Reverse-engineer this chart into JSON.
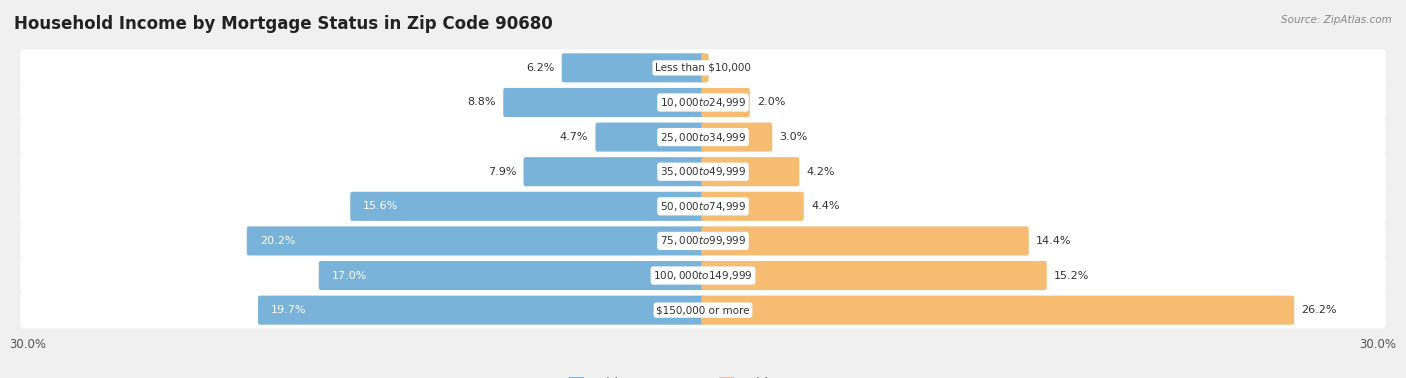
{
  "title": "Household Income by Mortgage Status in Zip Code 90680",
  "source": "Source: ZipAtlas.com",
  "categories": [
    "Less than $10,000",
    "$10,000 to $24,999",
    "$25,000 to $34,999",
    "$35,000 to $49,999",
    "$50,000 to $74,999",
    "$75,000 to $99,999",
    "$100,000 to $149,999",
    "$150,000 or more"
  ],
  "without_mortgage": [
    6.2,
    8.8,
    4.7,
    7.9,
    15.6,
    20.2,
    17.0,
    19.7
  ],
  "with_mortgage": [
    0.17,
    2.0,
    3.0,
    4.2,
    4.4,
    14.4,
    15.2,
    26.2
  ],
  "without_mortgage_color": "#7ab3d9",
  "with_mortgage_color": "#f5bc72",
  "xlim": 30.0,
  "background_color": "#f0f0f0",
  "row_bg_color": "#e8e8ec",
  "title_fontsize": 12,
  "label_fontsize": 8,
  "cat_fontsize": 7.5,
  "axis_label_fontsize": 8.5
}
